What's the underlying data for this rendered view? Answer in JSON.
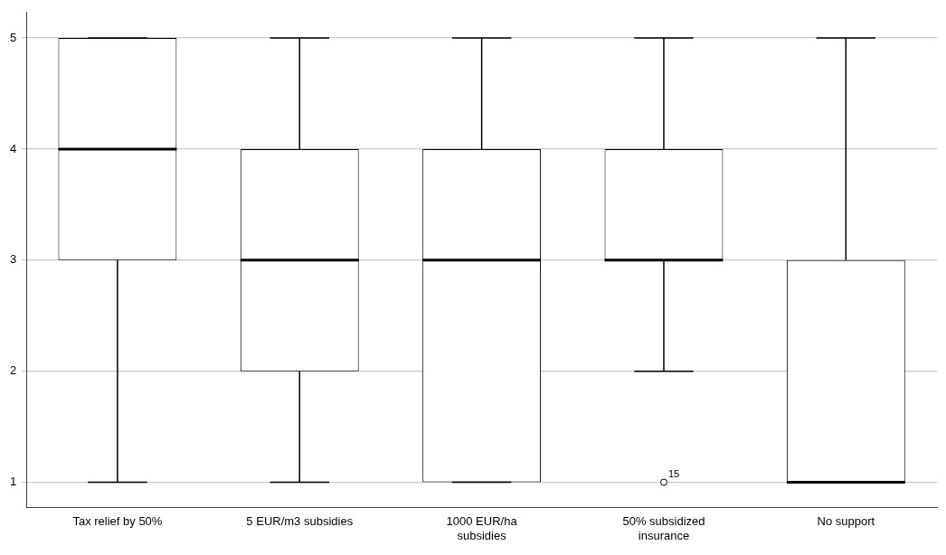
{
  "chart_data": {
    "type": "box",
    "categories": [
      "Tax relief by 50%",
      "5 EUR/m3 subsidies",
      "1000 EUR/ha subsidies",
      "50% subsidized insurance",
      "No support"
    ],
    "boxes": [
      {
        "low": 1,
        "q1": 3,
        "median": 4,
        "q3": 5,
        "high": 5
      },
      {
        "low": 1,
        "q1": 2,
        "median": 3,
        "q3": 4,
        "high": 5
      },
      {
        "low": 1,
        "q1": 1,
        "median": 3,
        "q3": 4,
        "high": 5
      },
      {
        "low": 2,
        "q1": 3,
        "median": 3,
        "q3": 4,
        "high": 5,
        "outliers": [
          1
        ]
      },
      {
        "low": 1,
        "q1": 1,
        "median": 1,
        "q3": 3,
        "high": 5
      }
    ],
    "ylim": [
      0.77,
      5.23
    ],
    "yticks": [
      1,
      2,
      3,
      4,
      5
    ],
    "grid": "y",
    "legend": false,
    "annotations": [
      "15"
    ]
  }
}
